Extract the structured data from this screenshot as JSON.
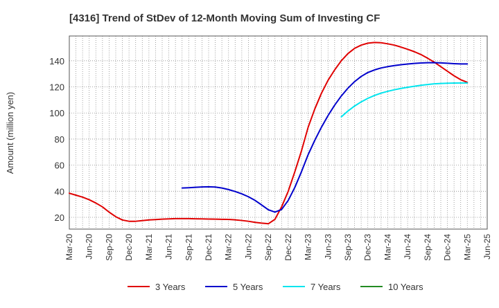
{
  "chart_data": {
    "type": "line",
    "title": "[4316]  Trend of StDev of 12-Month Moving Sum of Investing CF",
    "ylabel": "Amount (million yen)",
    "xlabel": "",
    "ylim": [
      11,
      159
    ],
    "yticks": [
      20,
      40,
      60,
      80,
      100,
      120,
      140
    ],
    "x_tick_labels": [
      "Mar-20",
      "Jun-20",
      "Sep-20",
      "Dec-20",
      "Mar-21",
      "Jun-21",
      "Sep-21",
      "Dec-21",
      "Mar-22",
      "Jun-22",
      "Sep-22",
      "Dec-22",
      "Mar-23",
      "Jun-23",
      "Sep-23",
      "Dec-23",
      "Mar-24",
      "Jun-24",
      "Sep-24",
      "Dec-24",
      "Mar-25",
      "Jun-25"
    ],
    "grid": true,
    "legend_position": "bottom",
    "series": [
      {
        "name": "3 Years",
        "color": "#e00000",
        "points": [
          [
            "Mar-20",
            38.5
          ],
          [
            "Apr-20",
            37
          ],
          [
            "May-20",
            35.5
          ],
          [
            "Jun-20",
            33.5
          ],
          [
            "Jul-20",
            31
          ],
          [
            "Aug-20",
            28
          ],
          [
            "Sep-20",
            24
          ],
          [
            "Oct-20",
            20.5
          ],
          [
            "Nov-20",
            18
          ],
          [
            "Dec-20",
            17
          ],
          [
            "Jan-21",
            17
          ],
          [
            "Feb-21",
            17.5
          ],
          [
            "Mar-21",
            18
          ],
          [
            "Apr-21",
            18.3
          ],
          [
            "May-21",
            18.6
          ],
          [
            "Jun-21",
            18.8
          ],
          [
            "Jul-21",
            19
          ],
          [
            "Aug-21",
            19
          ],
          [
            "Sep-21",
            19
          ],
          [
            "Oct-21",
            18.9
          ],
          [
            "Nov-21",
            18.8
          ],
          [
            "Dec-21",
            18.7
          ],
          [
            "Jan-22",
            18.6
          ],
          [
            "Feb-22",
            18.5
          ],
          [
            "Mar-22",
            18.4
          ],
          [
            "Apr-22",
            18.1
          ],
          [
            "May-22",
            17.6
          ],
          [
            "Jun-22",
            17
          ],
          [
            "Jul-22",
            16.2
          ],
          [
            "Aug-22",
            15.6
          ],
          [
            "Sep-22",
            15.1
          ],
          [
            "Oct-22",
            18.5
          ],
          [
            "Nov-22",
            28
          ],
          [
            "Dec-22",
            40
          ],
          [
            "Jan-23",
            55
          ],
          [
            "Feb-23",
            71
          ],
          [
            "Mar-23",
            89
          ],
          [
            "Apr-23",
            103
          ],
          [
            "May-23",
            115
          ],
          [
            "Jun-23",
            125
          ],
          [
            "Jul-23",
            133
          ],
          [
            "Aug-23",
            140
          ],
          [
            "Sep-23",
            145.5
          ],
          [
            "Oct-23",
            149.5
          ],
          [
            "Nov-23",
            152
          ],
          [
            "Dec-23",
            153.5
          ],
          [
            "Jan-24",
            154
          ],
          [
            "Feb-24",
            153.8
          ],
          [
            "Mar-24",
            153
          ],
          [
            "Apr-24",
            152
          ],
          [
            "May-24",
            150.5
          ],
          [
            "Jun-24",
            148.8
          ],
          [
            "Jul-24",
            147
          ],
          [
            "Aug-24",
            144.8
          ],
          [
            "Sep-24",
            142
          ],
          [
            "Oct-24",
            139
          ],
          [
            "Nov-24",
            135.5
          ],
          [
            "Dec-24",
            132
          ],
          [
            "Jan-25",
            128.5
          ],
          [
            "Feb-25",
            125.5
          ],
          [
            "Mar-25",
            123.5
          ]
        ]
      },
      {
        "name": "5 Years",
        "color": "#0000cc",
        "points": [
          [
            "Aug-21",
            42.5
          ],
          [
            "Sep-21",
            42.7
          ],
          [
            "Oct-21",
            43
          ],
          [
            "Nov-21",
            43.3
          ],
          [
            "Dec-21",
            43.4
          ],
          [
            "Jan-22",
            43.2
          ],
          [
            "Feb-22",
            42.5
          ],
          [
            "Mar-22",
            41.3
          ],
          [
            "Apr-22",
            39.8
          ],
          [
            "May-22",
            38
          ],
          [
            "Jun-22",
            35.8
          ],
          [
            "Jul-22",
            33
          ],
          [
            "Aug-22",
            29.5
          ],
          [
            "Sep-22",
            25.8
          ],
          [
            "Oct-22",
            24
          ],
          [
            "Nov-22",
            26
          ],
          [
            "Dec-22",
            33
          ],
          [
            "Jan-23",
            43
          ],
          [
            "Feb-23",
            55
          ],
          [
            "Mar-23",
            68
          ],
          [
            "Apr-23",
            79
          ],
          [
            "May-23",
            89
          ],
          [
            "Jun-23",
            98
          ],
          [
            "Jul-23",
            106
          ],
          [
            "Aug-23",
            113
          ],
          [
            "Sep-23",
            119
          ],
          [
            "Oct-23",
            124
          ],
          [
            "Nov-23",
            128
          ],
          [
            "Dec-23",
            131
          ],
          [
            "Jan-24",
            133
          ],
          [
            "Feb-24",
            134.5
          ],
          [
            "Mar-24",
            135.5
          ],
          [
            "Apr-24",
            136.3
          ],
          [
            "May-24",
            137
          ],
          [
            "Jun-24",
            137.5
          ],
          [
            "Jul-24",
            138
          ],
          [
            "Aug-24",
            138.3
          ],
          [
            "Sep-24",
            138.5
          ],
          [
            "Oct-24",
            138.6
          ],
          [
            "Nov-24",
            138.4
          ],
          [
            "Dec-24",
            138.1
          ],
          [
            "Jan-25",
            137.8
          ],
          [
            "Feb-25",
            137.6
          ],
          [
            "Mar-25",
            137.6
          ]
        ]
      },
      {
        "name": "7 Years",
        "color": "#00e5ee",
        "points": [
          [
            "Aug-23",
            97
          ],
          [
            "Sep-23",
            101.5
          ],
          [
            "Oct-23",
            105.3
          ],
          [
            "Nov-23",
            108.5
          ],
          [
            "Dec-23",
            111.2
          ],
          [
            "Jan-24",
            113.4
          ],
          [
            "Feb-24",
            115.2
          ],
          [
            "Mar-24",
            116.6
          ],
          [
            "Apr-24",
            117.8
          ],
          [
            "May-24",
            118.8
          ],
          [
            "Jun-24",
            119.7
          ],
          [
            "Jul-24",
            120.5
          ],
          [
            "Aug-24",
            121.2
          ],
          [
            "Sep-24",
            121.8
          ],
          [
            "Oct-24",
            122.3
          ],
          [
            "Nov-24",
            122.6
          ],
          [
            "Dec-24",
            122.8
          ],
          [
            "Jan-25",
            122.9
          ],
          [
            "Feb-25",
            123
          ],
          [
            "Mar-25",
            123
          ]
        ]
      },
      {
        "name": "10 Years",
        "color": "#228b22",
        "points": []
      }
    ]
  }
}
